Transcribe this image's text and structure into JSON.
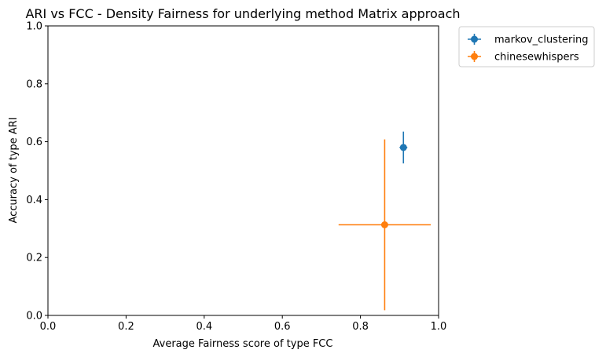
{
  "chart_data": {
    "type": "scatter",
    "title": "ARI vs FCC - Density Fairness for underlying method Matrix approach",
    "xlabel": "Average Fairness score of type FCC",
    "ylabel": "Accuracy of type ARI",
    "xlim": [
      0.0,
      1.0
    ],
    "ylim": [
      0.0,
      1.0
    ],
    "xticks": [
      "0.0",
      "0.2",
      "0.4",
      "0.6",
      "0.8",
      "1.0"
    ],
    "yticks": [
      "0.0",
      "0.2",
      "0.4",
      "0.6",
      "0.8",
      "1.0"
    ],
    "grid": false,
    "legend_position": "outside-upper-right",
    "series": [
      {
        "name": "markov_clustering",
        "color": "#1f77b4",
        "x": 0.91,
        "y": 0.58,
        "x_err": 0.01,
        "y_err": 0.055
      },
      {
        "name": "chinesewhispers",
        "color": "#ff7f0e",
        "x": 0.862,
        "y": 0.313,
        "x_err": 0.118,
        "y_err": 0.295
      }
    ]
  }
}
